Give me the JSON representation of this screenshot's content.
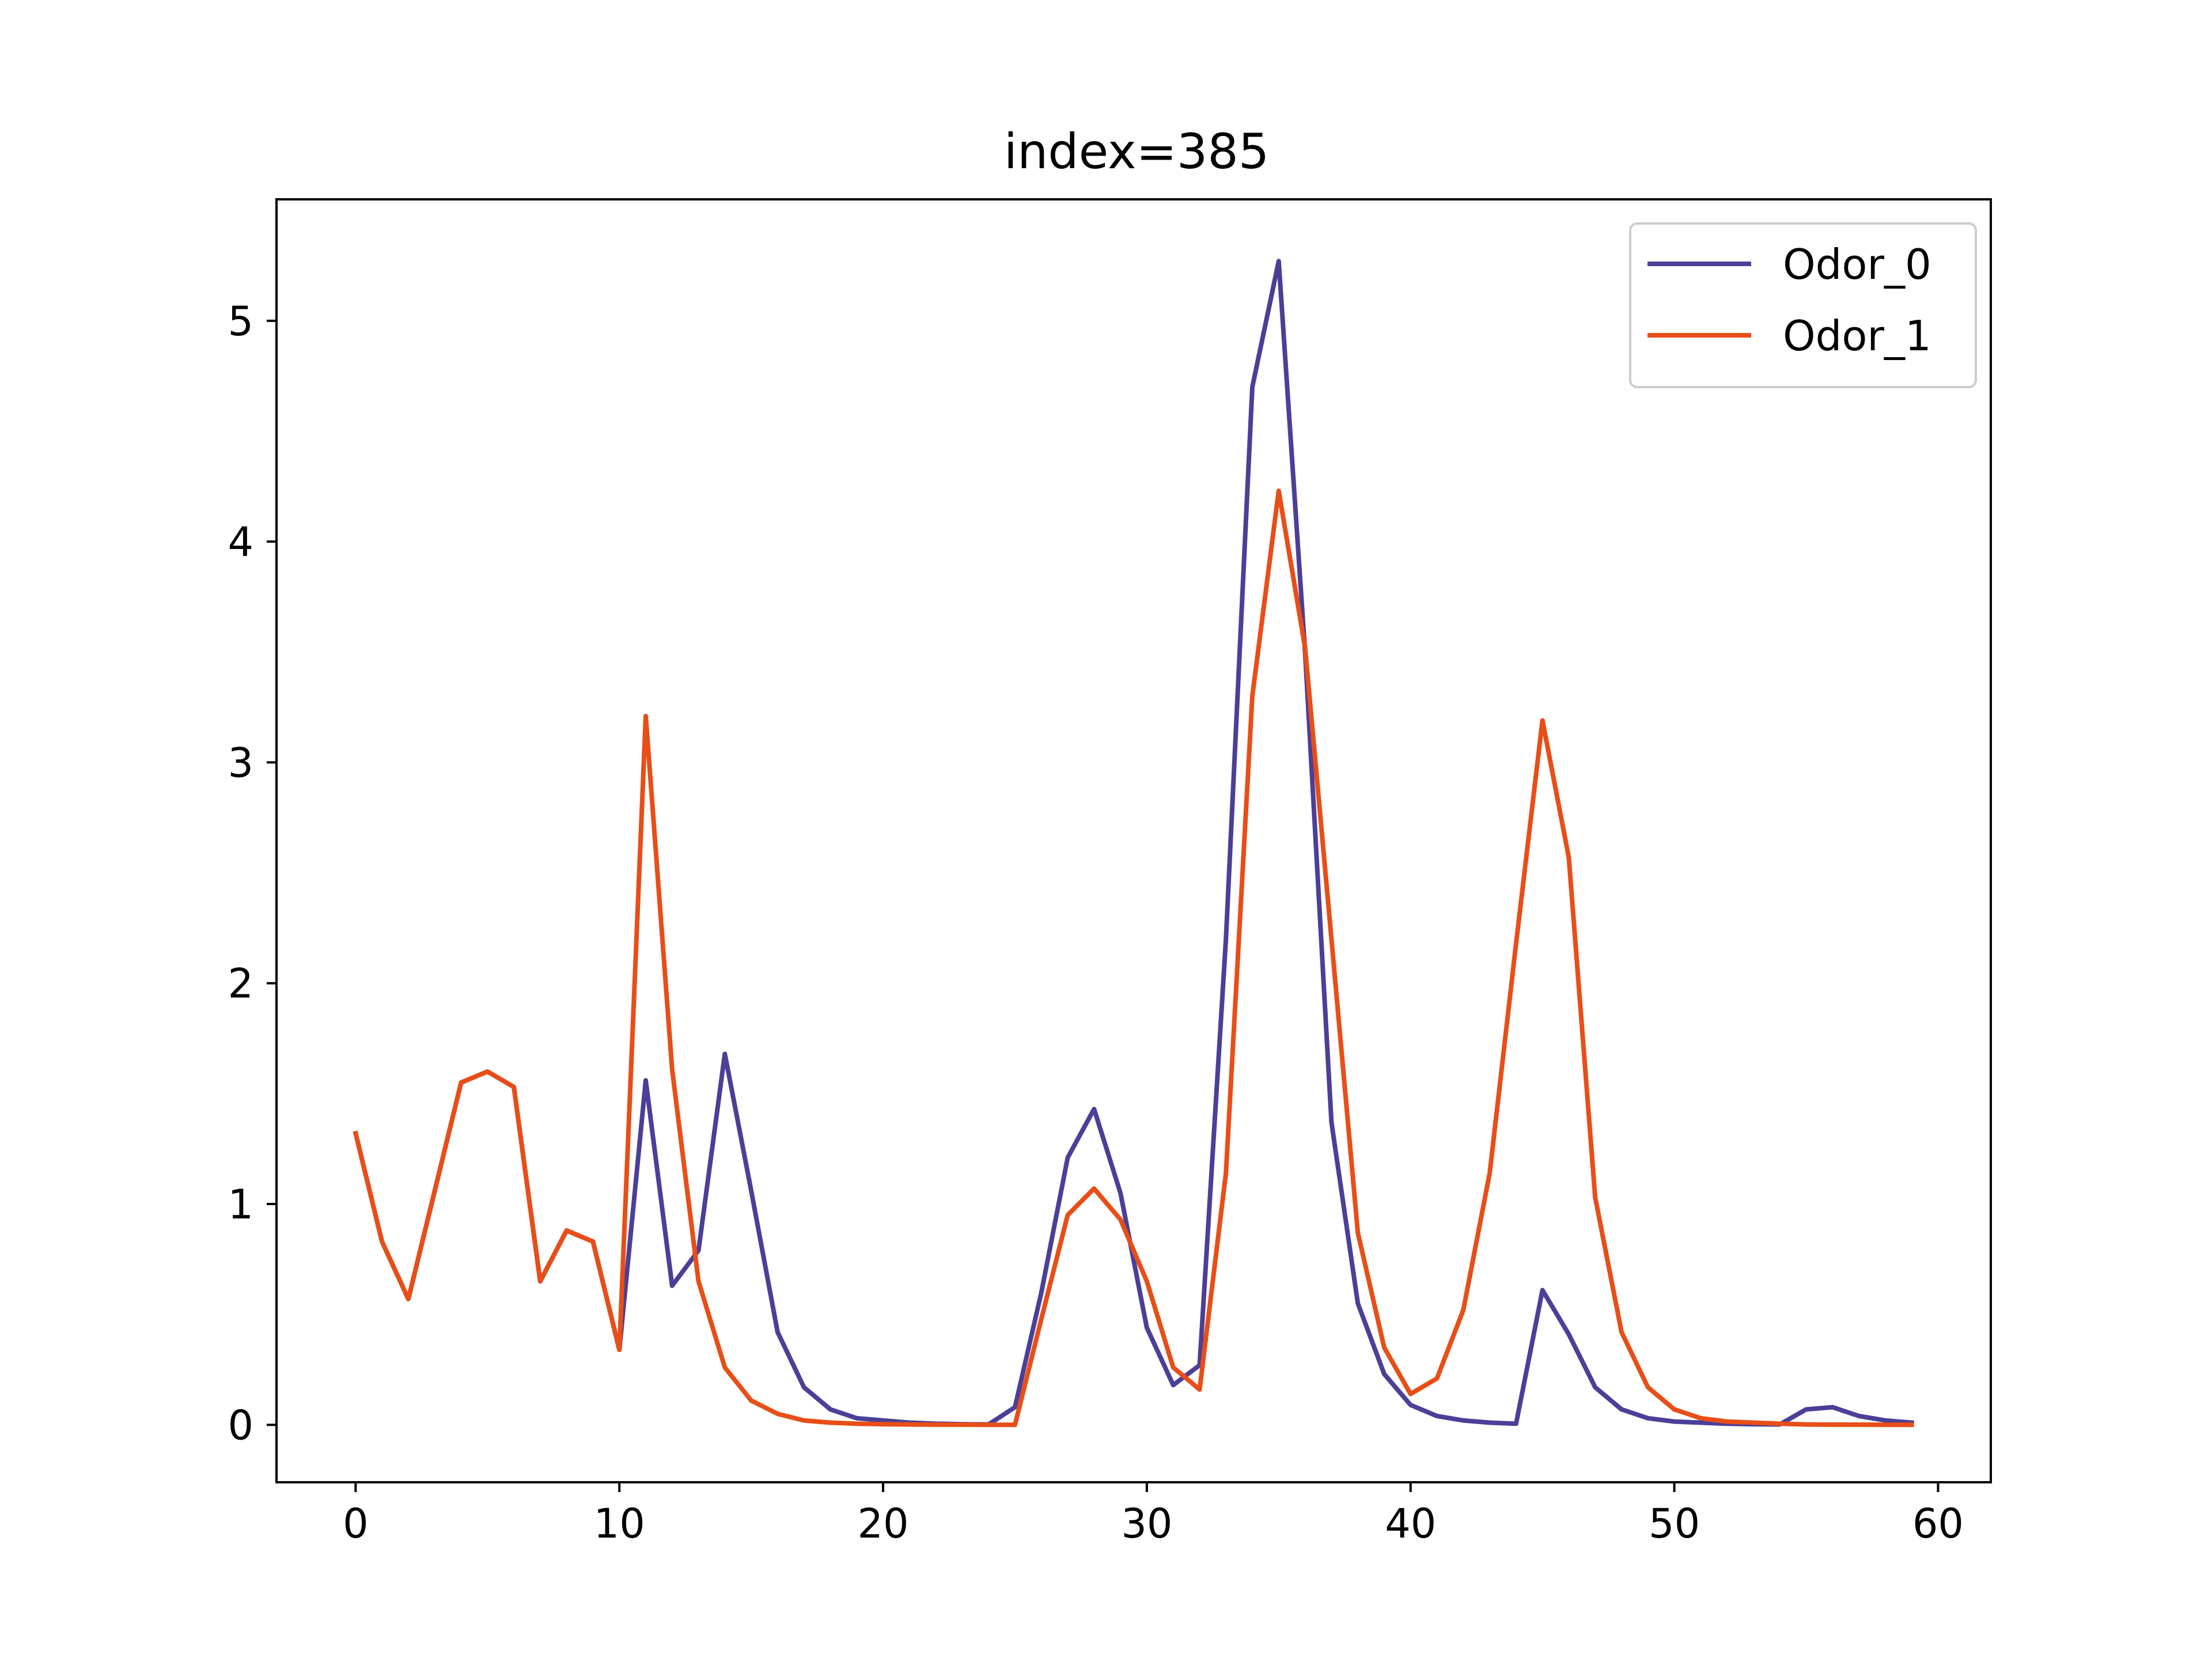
{
  "chart_data": {
    "type": "line",
    "title": "index=385",
    "xlabel": "",
    "ylabel": "",
    "xlim": [
      -3,
      62
    ],
    "ylim": [
      -0.26,
      5.55
    ],
    "xticks": [
      0,
      10,
      20,
      30,
      40,
      50,
      60
    ],
    "yticks": [
      0,
      1,
      2,
      3,
      4,
      5
    ],
    "xtick_labels": [
      "0",
      "10",
      "20",
      "30",
      "40",
      "50",
      "60"
    ],
    "ytick_labels": [
      "0",
      "1",
      "2",
      "3",
      "4",
      "5"
    ],
    "grid": false,
    "legend_position": "top-right",
    "x": [
      0,
      1,
      2,
      3,
      4,
      5,
      6,
      7,
      8,
      9,
      10,
      11,
      12,
      13,
      14,
      15,
      16,
      17,
      18,
      19,
      20,
      21,
      22,
      23,
      24,
      25,
      26,
      27,
      28,
      29,
      30,
      31,
      32,
      33,
      34,
      35,
      36,
      37,
      38,
      39,
      40,
      41,
      42,
      43,
      44,
      45,
      46,
      47,
      48,
      49,
      50,
      51,
      52,
      53,
      54,
      55,
      56,
      57,
      58,
      59
    ],
    "series": [
      {
        "name": "Odor_0",
        "color": "#4b3f98",
        "values": [
          1.32,
          0.83,
          0.57,
          1.06,
          1.55,
          1.6,
          1.53,
          0.65,
          0.88,
          0.83,
          0.34,
          1.56,
          0.63,
          0.79,
          1.68,
          1.06,
          0.42,
          0.17,
          0.07,
          0.03,
          0.02,
          0.01,
          0.005,
          0.003,
          0.002,
          0.08,
          0.6,
          1.21,
          1.43,
          1.05,
          0.44,
          0.18,
          0.27,
          2.2,
          4.7,
          5.27,
          3.5,
          1.37,
          0.55,
          0.23,
          0.09,
          0.04,
          0.02,
          0.01,
          0.005,
          0.61,
          0.41,
          0.17,
          0.07,
          0.03,
          0.015,
          0.01,
          0.005,
          0.003,
          0.002,
          0.07,
          0.08,
          0.04,
          0.02,
          0.01
        ]
      },
      {
        "name": "Odor_1",
        "color": "#e84e17",
        "values": [
          1.32,
          0.83,
          0.57,
          1.06,
          1.55,
          1.6,
          1.53,
          0.65,
          0.88,
          0.83,
          0.34,
          3.21,
          1.61,
          0.65,
          0.26,
          0.11,
          0.05,
          0.02,
          0.01,
          0.005,
          0.003,
          0.002,
          0.001,
          0.001,
          0.0,
          0.0,
          0.48,
          0.95,
          1.07,
          0.93,
          0.65,
          0.26,
          0.16,
          1.14,
          3.3,
          4.23,
          3.52,
          2.2,
          0.87,
          0.35,
          0.14,
          0.21,
          0.52,
          1.14,
          2.18,
          3.19,
          2.57,
          1.03,
          0.42,
          0.17,
          0.07,
          0.03,
          0.015,
          0.01,
          0.005,
          0.002,
          0.001,
          0.001,
          0.0,
          0.0
        ]
      }
    ]
  }
}
